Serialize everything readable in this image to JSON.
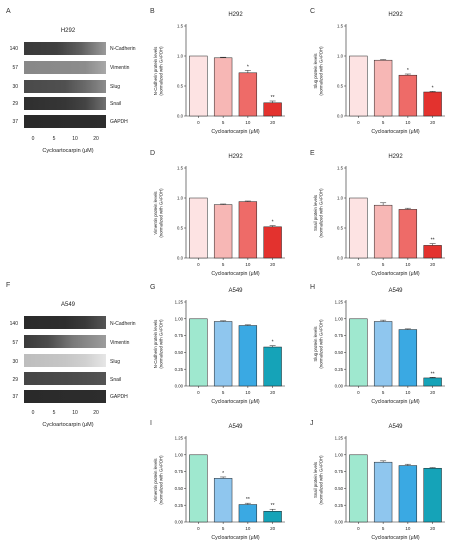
{
  "colors": {
    "h292": [
      "#fde3e3",
      "#f7b7b5",
      "#ee6b68",
      "#e3322e"
    ],
    "a549": [
      "#9fe8cf",
      "#8fc6ee",
      "#3aa9e3",
      "#15a3b8"
    ]
  },
  "blots": [
    {
      "letter": "A",
      "title": "H292",
      "mw": [
        "140",
        "57",
        "30",
        "29",
        "37"
      ],
      "bands": [
        "N-Cadherin",
        "Vimentin",
        "Slug",
        "Snail",
        "GAPDH"
      ],
      "lanes": [
        "0",
        "5",
        "10",
        "20"
      ],
      "xlabel": "Cycloartocarpin (μM)"
    },
    {
      "letter": "F",
      "title": "A549",
      "mw": [
        "140",
        "57",
        "30",
        "29",
        "37"
      ],
      "bands": [
        "N-Cadherin",
        "Vimentin",
        "Slug",
        "Snail",
        "GAPDH"
      ],
      "lanes": [
        "0",
        "5",
        "10",
        "20"
      ],
      "xlabel": "Cycloartocarpin (μM)"
    }
  ],
  "chart_data": [
    {
      "letter": "B",
      "type": "bar",
      "title": "H292",
      "ylabel": "N-Cadherin protein levels\n(normalized with GAPDH)",
      "xlabel": "Cycloartocarpin (μM)",
      "categories": [
        "0",
        "5",
        "10",
        "20"
      ],
      "values": [
        1.0,
        0.97,
        0.72,
        0.22
      ],
      "errors": [
        0,
        0.01,
        0.04,
        0.03
      ],
      "sig": [
        "",
        "",
        "*",
        "**"
      ],
      "ylim": [
        0,
        1.5
      ],
      "yticks": [
        "0.0",
        "0.5",
        "1.0",
        "1.5"
      ],
      "palette": "h292"
    },
    {
      "letter": "C",
      "type": "bar",
      "title": "H292",
      "ylabel": "Slug protein levels\n(normalized with GAPDH)",
      "xlabel": "Cycloartocarpin (μM)",
      "categories": [
        "0",
        "5",
        "10",
        "20"
      ],
      "values": [
        1.0,
        0.93,
        0.68,
        0.4
      ],
      "errors": [
        0,
        0.01,
        0.02,
        0.01
      ],
      "sig": [
        "",
        "",
        "*",
        "*"
      ],
      "ylim": [
        0,
        1.5
      ],
      "yticks": [
        "0.0",
        "0.5",
        "1.0",
        "1.5"
      ],
      "palette": "h292"
    },
    {
      "letter": "D",
      "type": "bar",
      "title": "H292",
      "ylabel": "Vimentin protein levels\n(normalized with GAPDH)",
      "xlabel": "Cycloartocarpin (μM)",
      "categories": [
        "0",
        "5",
        "10",
        "20"
      ],
      "values": [
        1.0,
        0.89,
        0.94,
        0.52
      ],
      "errors": [
        0,
        0.01,
        0.01,
        0.02
      ],
      "sig": [
        "",
        "",
        "",
        "*"
      ],
      "ylim": [
        0,
        1.5
      ],
      "yticks": [
        "0.0",
        "0.5",
        "1.0",
        "1.5"
      ],
      "palette": "h292"
    },
    {
      "letter": "E",
      "type": "bar",
      "title": "H292",
      "ylabel": "Snail protein levels\n(normalized with GAPDH)",
      "xlabel": "Cycloartocarpin (μM)",
      "categories": [
        "0",
        "5",
        "10",
        "20"
      ],
      "values": [
        1.0,
        0.88,
        0.81,
        0.21
      ],
      "errors": [
        0,
        0.04,
        0.02,
        0.03
      ],
      "sig": [
        "",
        "",
        "",
        "**"
      ],
      "ylim": [
        0,
        1.5
      ],
      "yticks": [
        "0.0",
        "0.5",
        "1.0",
        "1.5"
      ],
      "palette": "h292"
    },
    {
      "letter": "G",
      "type": "bar",
      "title": "A549",
      "ylabel": "N-Cadherin protein levels\n(normalized with GAPDH)",
      "xlabel": "Cycloartocarpin (μM)",
      "categories": [
        "0",
        "5",
        "10",
        "20"
      ],
      "values": [
        1.0,
        0.96,
        0.9,
        0.58
      ],
      "errors": [
        0,
        0.01,
        0.01,
        0.02
      ],
      "sig": [
        "",
        "",
        "",
        "*"
      ],
      "ylim": [
        0,
        1.25
      ],
      "yticks": [
        "0.00",
        "0.25",
        "0.50",
        "0.75",
        "1.00",
        "1.25"
      ],
      "palette": "a549"
    },
    {
      "letter": "H",
      "type": "bar",
      "title": "A549",
      "ylabel": "Slug protein levels\n(normalized with GAPDH)",
      "xlabel": "Cycloartocarpin (μM)",
      "categories": [
        "0",
        "5",
        "10",
        "20"
      ],
      "values": [
        1.0,
        0.96,
        0.84,
        0.12
      ],
      "errors": [
        0,
        0.02,
        0.01,
        0.01
      ],
      "sig": [
        "",
        "",
        "",
        "**"
      ],
      "ylim": [
        0,
        1.25
      ],
      "yticks": [
        "0.00",
        "0.25",
        "0.50",
        "0.75",
        "1.00",
        "1.25"
      ],
      "palette": "a549"
    },
    {
      "letter": "I",
      "type": "bar",
      "title": "A549",
      "ylabel": "Vimentin protein levels\n(normalized with GAPDH)",
      "xlabel": "Cycloartocarpin (μM)",
      "categories": [
        "0",
        "5",
        "10",
        "20"
      ],
      "values": [
        1.0,
        0.65,
        0.26,
        0.16
      ],
      "errors": [
        0,
        0.02,
        0.02,
        0.03
      ],
      "sig": [
        "",
        "*",
        "**",
        "**"
      ],
      "ylim": [
        0,
        1.25
      ],
      "yticks": [
        "0.00",
        "0.25",
        "0.50",
        "0.75",
        "1.00",
        "1.25"
      ],
      "palette": "a549"
    },
    {
      "letter": "J",
      "type": "bar",
      "title": "A549",
      "ylabel": "Snail protein levels\n(normalized with GAPDH)",
      "xlabel": "Cycloartocarpin (μM)",
      "categories": [
        "0",
        "5",
        "10",
        "20"
      ],
      "values": [
        1.0,
        0.89,
        0.84,
        0.8
      ],
      "errors": [
        0,
        0.02,
        0.02,
        0.01
      ],
      "sig": [
        "",
        "",
        "",
        ""
      ],
      "ylim": [
        0,
        1.25
      ],
      "yticks": [
        "0.00",
        "0.25",
        "0.50",
        "0.75",
        "1.00",
        "1.25"
      ],
      "palette": "a549"
    }
  ]
}
